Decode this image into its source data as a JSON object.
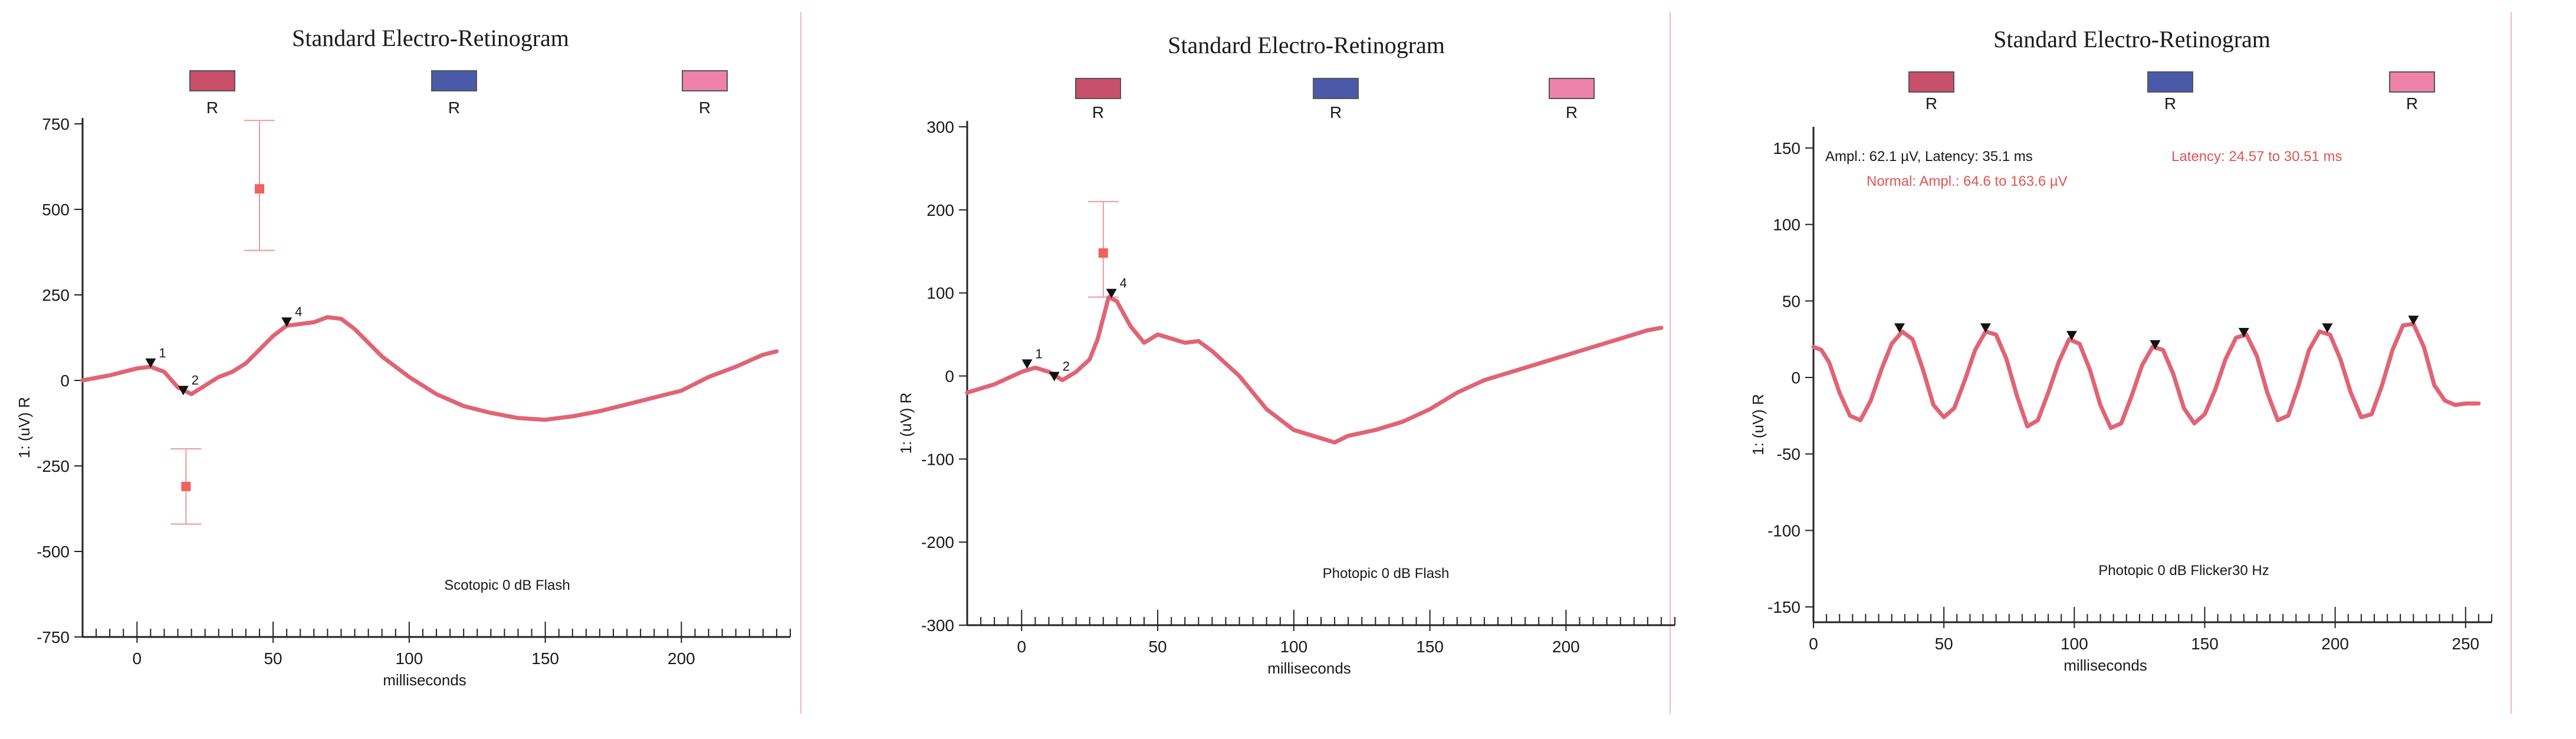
{
  "chart_data": [
    {
      "type": "line",
      "title": "Standard Electro-Retinogram",
      "legend": [
        {
          "label": "R",
          "color": "#c8506a"
        },
        {
          "label": "R",
          "color": "#4a5aa8"
        },
        {
          "label": "R",
          "color": "#ee82a8"
        }
      ],
      "xlabel": "milliseconds",
      "ylabel": "1: (uV) R",
      "xlim": [
        -20,
        240
      ],
      "ylim": [
        -750,
        750
      ],
      "xticks": [
        0,
        50,
        100,
        150,
        200
      ],
      "yticks": [
        750,
        500,
        250,
        0,
        -250,
        -500,
        -750
      ],
      "yticklabels": [
        "750",
        "500",
        "250",
        "0",
        "-250",
        "-500",
        "-750"
      ],
      "caption": "Scotopic 0 dB Flash",
      "line_color": "#e06474",
      "series": [
        {
          "x": [
            -20,
            -10,
            0,
            5,
            10,
            15,
            20,
            25,
            30,
            35,
            40,
            45,
            50,
            55,
            60,
            65,
            70,
            75,
            80,
            85,
            90,
            95,
            100,
            110,
            120,
            130,
            140,
            150,
            160,
            170,
            180,
            190,
            200,
            210,
            220,
            230,
            235
          ],
          "y": [
            0,
            15,
            35,
            40,
            25,
            -20,
            -40,
            -15,
            10,
            25,
            50,
            90,
            130,
            160,
            165,
            170,
            185,
            180,
            150,
            110,
            70,
            40,
            10,
            -40,
            -75,
            -95,
            -110,
            -115,
            -105,
            -90,
            -70,
            -50,
            -30,
            10,
            40,
            75,
            85
          ]
        }
      ],
      "markers": [
        {
          "label": "1",
          "x": 5,
          "y": 40
        },
        {
          "label": "2",
          "x": 17,
          "y": -40
        },
        {
          "label": "4",
          "x": 55,
          "y": 160
        }
      ],
      "normal_ranges": [
        {
          "x": 45,
          "y": 560,
          "low": 380,
          "high": 760
        },
        {
          "x": 18,
          "y": -310,
          "low": -420,
          "high": -200
        }
      ]
    },
    {
      "type": "line",
      "title": "Standard Electro-Retinogram",
      "legend": [
        {
          "label": "R",
          "color": "#c8506a"
        },
        {
          "label": "R",
          "color": "#4a5aa8"
        },
        {
          "label": "R",
          "color": "#ee82a8"
        }
      ],
      "xlabel": "milliseconds",
      "ylabel": "1: (uV) R",
      "xlim": [
        -20,
        240
      ],
      "ylim": [
        -300,
        300
      ],
      "xticks": [
        0,
        50,
        100,
        150,
        200
      ],
      "yticks": [
        300,
        200,
        100,
        0,
        -100,
        -200,
        -300
      ],
      "yticklabels": [
        "300",
        "200",
        "100",
        "0",
        "-100",
        "-200",
        "-300"
      ],
      "caption": "Photopic 0 dB Flash",
      "line_color": "#e06474",
      "series": [
        {
          "x": [
            -20,
            -10,
            0,
            5,
            10,
            15,
            20,
            25,
            28,
            32,
            35,
            40,
            45,
            50,
            55,
            60,
            65,
            70,
            75,
            80,
            85,
            90,
            100,
            110,
            115,
            120,
            130,
            140,
            150,
            160,
            170,
            180,
            190,
            200,
            210,
            220,
            230,
            235
          ],
          "y": [
            -20,
            -10,
            5,
            10,
            5,
            -5,
            5,
            20,
            45,
            95,
            90,
            60,
            40,
            50,
            45,
            40,
            42,
            30,
            15,
            0,
            -20,
            -40,
            -65,
            -75,
            -80,
            -72,
            -65,
            -55,
            -40,
            -20,
            -5,
            5,
            15,
            25,
            35,
            45,
            55,
            58
          ]
        }
      ],
      "markers": [
        {
          "label": "1",
          "x": 2,
          "y": 10
        },
        {
          "label": "2",
          "x": 12,
          "y": -5
        },
        {
          "label": "4",
          "x": 33,
          "y": 95
        }
      ],
      "normal_ranges": [
        {
          "x": 30,
          "y": 148,
          "low": 95,
          "high": 210
        }
      ]
    },
    {
      "type": "line",
      "title": "Standard Electro-Retinogram",
      "legend": [
        {
          "label": "R",
          "color": "#c8506a"
        },
        {
          "label": "R",
          "color": "#4a5aa8"
        },
        {
          "label": "R",
          "color": "#ee82a8"
        }
      ],
      "xlabel": "milliseconds",
      "ylabel": "1: (uV) R",
      "xlim": [
        0,
        260
      ],
      "ylim": [
        -160,
        160
      ],
      "xticks": [
        0,
        50,
        100,
        150,
        200,
        250
      ],
      "yticks": [
        150,
        100,
        50,
        0,
        -50,
        -100,
        -150
      ],
      "yticklabels": [
        "150",
        "100",
        "50",
        "0",
        "-50",
        "-100",
        "-150"
      ],
      "caption": "Photopic 0 dB Flicker30 Hz",
      "annotations": {
        "ampl_latency": "Ampl.: 62.1 µV, Latency: 35.1 ms",
        "normal_ampl": "Normal: Ampl.: 64.6 to 163.6 µV",
        "normal_latency": "Latency: 24.57 to 30.51 ms"
      },
      "line_color": "#e06474",
      "series": [
        {
          "x": [
            0,
            3,
            6,
            10,
            14,
            18,
            22,
            26,
            30,
            34,
            38,
            42,
            46,
            50,
            54,
            58,
            62,
            66,
            70,
            74,
            78,
            82,
            86,
            90,
            94,
            98,
            102,
            106,
            110,
            114,
            118,
            122,
            126,
            130,
            134,
            138,
            142,
            146,
            150,
            154,
            158,
            162,
            166,
            170,
            174,
            178,
            182,
            186,
            190,
            194,
            198,
            202,
            206,
            210,
            214,
            218,
            222,
            226,
            230,
            234,
            238,
            242,
            246,
            250,
            255
          ],
          "y": [
            20,
            18,
            10,
            -10,
            -25,
            -28,
            -15,
            5,
            22,
            30,
            25,
            5,
            -18,
            -26,
            -20,
            -2,
            18,
            30,
            28,
            12,
            -12,
            -32,
            -28,
            -10,
            10,
            25,
            22,
            5,
            -18,
            -33,
            -30,
            -12,
            8,
            20,
            18,
            2,
            -20,
            -30,
            -24,
            -8,
            12,
            26,
            28,
            14,
            -10,
            -28,
            -25,
            -5,
            18,
            30,
            28,
            12,
            -10,
            -26,
            -24,
            -5,
            18,
            34,
            35,
            20,
            -5,
            -15,
            -18,
            -17,
            -17
          ]
        }
      ],
      "markers": [
        {
          "label": "",
          "x": 33,
          "y": 30
        },
        {
          "label": "",
          "x": 66,
          "y": 30
        },
        {
          "label": "",
          "x": 99,
          "y": 25
        },
        {
          "label": "",
          "x": 131,
          "y": 19
        },
        {
          "label": "",
          "x": 165,
          "y": 27
        },
        {
          "label": "",
          "x": 197,
          "y": 30
        },
        {
          "label": "",
          "x": 230,
          "y": 35
        }
      ],
      "normal_ranges": []
    }
  ]
}
